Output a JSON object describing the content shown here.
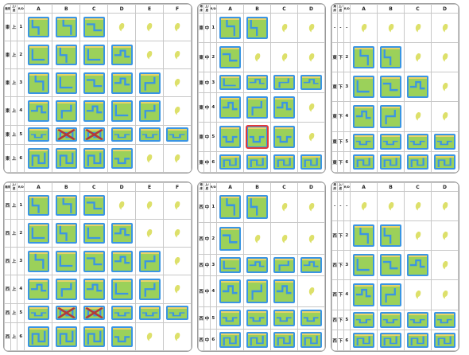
{
  "colors": {
    "grass": "#9bd15a",
    "water": "#3a95e3",
    "leaf": "#dde06a",
    "cross": "#b23a3a",
    "highlight": "#e23a3a"
  },
  "panels": [
    {
      "id": "p1",
      "header": [
        "海床",
        "上/底",
        "R/D",
        "A",
        "B",
        "C",
        "D",
        "E",
        "F"
      ],
      "rows": [
        {
          "c1": "東",
          "c2": "上",
          "c3": "1",
          "cells": [
            "t1",
            "t2",
            "t3",
            "leaf",
            "leaf",
            "leaf"
          ]
        },
        {
          "c1": "東",
          "c2": "上",
          "c3": "2",
          "cells": [
            "t4",
            "t1",
            "t4",
            "t5",
            "leaf",
            "leaf"
          ]
        },
        {
          "c1": "東",
          "c2": "上",
          "c3": "3",
          "cells": [
            "t2",
            "t4",
            "t3",
            "t5",
            "t6",
            "leaf"
          ]
        },
        {
          "c1": "東",
          "c2": "上",
          "c3": "4",
          "cells": [
            "t5",
            "t6",
            "t5",
            "t4",
            "t6",
            "leaf"
          ]
        },
        {
          "c1": "東",
          "c2": "上",
          "c3": "5",
          "cells": [
            "t7",
            "x",
            "x",
            "t7",
            "t7",
            "t7"
          ]
        },
        {
          "c1": "東",
          "c2": "上",
          "c3": "6",
          "cells": [
            "t8",
            "t8",
            "t8",
            "t7",
            "leaf",
            "leaf"
          ]
        }
      ]
    },
    {
      "id": "p2",
      "header": [
        "海床",
        "上/底",
        "R/D",
        "A",
        "B",
        "C",
        "D"
      ],
      "rows": [
        {
          "c1": "東",
          "c2": "中",
          "c3": "1",
          "cells": [
            "t2",
            "t1",
            "leaf",
            "leaf"
          ]
        },
        {
          "c1": "東",
          "c2": "中",
          "c3": "2",
          "cells": [
            "t3",
            "leaf",
            "leaf",
            "leaf"
          ]
        },
        {
          "c1": "東",
          "c2": "中",
          "c3": "3",
          "cells": [
            "t4",
            "t5",
            "t6",
            "t5"
          ]
        },
        {
          "c1": "東",
          "c2": "中",
          "c3": "4",
          "cells": [
            "t5",
            "t6",
            "t5",
            "leaf"
          ]
        },
        {
          "c1": "東",
          "c2": "中",
          "c3": "5",
          "cells": [
            "t7",
            "hl",
            "t7",
            "leaf"
          ]
        },
        {
          "c1": "東",
          "c2": "中",
          "c3": "6",
          "cells": [
            "t8",
            "t8",
            "t8",
            "t8"
          ]
        }
      ]
    },
    {
      "id": "p3",
      "header": [
        "海床",
        "上/底",
        "R/D",
        "A",
        "B",
        "C",
        "D"
      ],
      "rows": [
        {
          "c1": "-",
          "c2": "-",
          "c3": "-",
          "cells": [
            "leaf",
            "leaf",
            "leaf",
            "leaf"
          ]
        },
        {
          "c1": "東",
          "c2": "下",
          "c3": "2",
          "cells": [
            "t2",
            "t1",
            "leaf",
            "leaf"
          ]
        },
        {
          "c1": "東",
          "c2": "下",
          "c3": "3",
          "cells": [
            "t4",
            "t3",
            "t5",
            "leaf"
          ]
        },
        {
          "c1": "東",
          "c2": "下",
          "c3": "4",
          "cells": [
            "t5",
            "t6",
            "leaf",
            "leaf"
          ]
        },
        {
          "c1": "東",
          "c2": "下",
          "c3": "5",
          "cells": [
            "t7",
            "t7",
            "t7",
            "t7"
          ]
        },
        {
          "c1": "東",
          "c2": "下",
          "c3": "6",
          "cells": [
            "t8",
            "t8",
            "t8",
            "t8"
          ]
        }
      ]
    },
    {
      "id": "p4",
      "header": [
        "海床",
        "上/底",
        "R/D",
        "A",
        "B",
        "C",
        "D",
        "E",
        "F"
      ],
      "rows": [
        {
          "c1": "西",
          "c2": "上",
          "c3": "1",
          "cells": [
            "t1",
            "t2",
            "t3",
            "leaf",
            "leaf",
            "leaf"
          ]
        },
        {
          "c1": "西",
          "c2": "上",
          "c3": "2",
          "cells": [
            "t4",
            "t1",
            "t4",
            "t5",
            "leaf",
            "leaf"
          ]
        },
        {
          "c1": "西",
          "c2": "上",
          "c3": "3",
          "cells": [
            "t2",
            "t4",
            "t3",
            "t5",
            "t6",
            "leaf"
          ]
        },
        {
          "c1": "西",
          "c2": "上",
          "c3": "4",
          "cells": [
            "t5",
            "t6",
            "t5",
            "t4",
            "t6",
            "leaf"
          ]
        },
        {
          "c1": "西",
          "c2": "上",
          "c3": "5",
          "cells": [
            "t7",
            "x",
            "x",
            "t7",
            "t7",
            "t7"
          ]
        },
        {
          "c1": "西",
          "c2": "上",
          "c3": "6",
          "cells": [
            "t8",
            "t8",
            "t8",
            "t7",
            "leaf",
            "leaf"
          ]
        }
      ]
    },
    {
      "id": "p5",
      "header": [
        "海床",
        "上/底",
        "R/D",
        "A",
        "B",
        "C",
        "D"
      ],
      "rows": [
        {
          "c1": "西",
          "c2": "中",
          "c3": "1",
          "cells": [
            "t2",
            "t1",
            "leaf",
            "leaf"
          ]
        },
        {
          "c1": "西",
          "c2": "中",
          "c3": "2",
          "cells": [
            "t3",
            "leaf",
            "leaf",
            "leaf"
          ]
        },
        {
          "c1": "西",
          "c2": "中",
          "c3": "3",
          "cells": [
            "t4",
            "t5",
            "t6",
            "t5"
          ]
        },
        {
          "c1": "西",
          "c2": "中",
          "c3": "4",
          "cells": [
            "t5",
            "t6",
            "t5",
            "leaf"
          ]
        },
        {
          "c1": "西",
          "c2": "中",
          "c3": "5",
          "cells": [
            "t7",
            "t7",
            "t7",
            "t7"
          ]
        },
        {
          "c1": "西",
          "c2": "中",
          "c3": "6",
          "cells": [
            "t8",
            "t8",
            "t8",
            "t8"
          ]
        }
      ]
    },
    {
      "id": "p6",
      "header": [
        "海床",
        "上/底",
        "R/D",
        "A",
        "B",
        "C",
        "D"
      ],
      "rows": [
        {
          "c1": "-",
          "c2": "-",
          "c3": "-",
          "cells": [
            "leaf",
            "leaf",
            "leaf",
            "leaf"
          ]
        },
        {
          "c1": "西",
          "c2": "下",
          "c3": "2",
          "cells": [
            "t2",
            "t1",
            "leaf",
            "leaf"
          ]
        },
        {
          "c1": "西",
          "c2": "下",
          "c3": "3",
          "cells": [
            "t4",
            "t3",
            "t5",
            "leaf"
          ]
        },
        {
          "c1": "西",
          "c2": "下",
          "c3": "4",
          "cells": [
            "t5",
            "t6",
            "leaf",
            "leaf"
          ]
        },
        {
          "c1": "西",
          "c2": "下",
          "c3": "5",
          "cells": [
            "t7",
            "t7",
            "t7",
            "t7"
          ]
        },
        {
          "c1": "西",
          "c2": "下",
          "c3": "6",
          "cells": [
            "t8",
            "t8",
            "t8",
            "t8"
          ]
        }
      ]
    }
  ]
}
